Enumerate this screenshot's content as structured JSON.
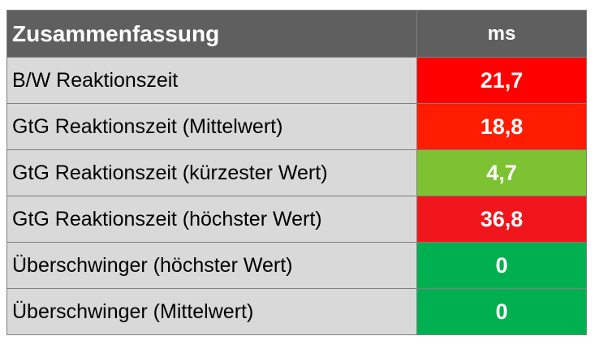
{
  "table": {
    "header": {
      "label": "Zusammenfassung",
      "unit": "ms"
    }
  },
  "chart_data": {
    "type": "table",
    "columns": [
      "Zusammenfassung",
      "ms"
    ],
    "rows": [
      {
        "label": "B/W Reaktionszeit",
        "value": "21,7",
        "color": "#ff0000"
      },
      {
        "label": "GtG Reaktionszeit (Mittelwert)",
        "value": "18,8",
        "color": "#ff1c00"
      },
      {
        "label": "GtG Reaktionszeit (kürzester Wert)",
        "value": "4,7",
        "color": "#7cc232"
      },
      {
        "label": "GtG Reaktionszeit (höchster Wert)",
        "value": "36,8",
        "color": "#f0161c"
      },
      {
        "label": "Überschwinger (höchster Wert)",
        "value": "0",
        "color": "#00b050"
      },
      {
        "label": "Überschwinger (Mittelwert)",
        "value": "0",
        "color": "#00b050"
      }
    ]
  }
}
